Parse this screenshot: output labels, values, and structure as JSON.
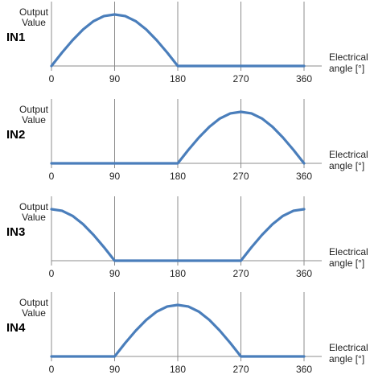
{
  "colors": {
    "series": "#4a7ebb",
    "grid": "#8c8c8c",
    "text": "#222222"
  },
  "chart_data": [
    {
      "type": "line",
      "panel_label": "IN1",
      "ylabel": "Output\nValue",
      "xlabel": "Electrical\nangle [°]",
      "x_ticks": [
        0,
        90,
        180,
        270,
        360
      ],
      "xlim": [
        0,
        360
      ],
      "ylim": [
        0,
        1
      ],
      "grid": true,
      "series": [
        {
          "x": [
            0,
            15,
            30,
            45,
            60,
            75,
            90,
            105,
            120,
            135,
            150,
            165,
            180,
            270,
            360
          ],
          "y": [
            0,
            0.26,
            0.5,
            0.71,
            0.87,
            0.97,
            1,
            0.97,
            0.87,
            0.71,
            0.5,
            0.26,
            0,
            0,
            0
          ]
        }
      ]
    },
    {
      "type": "line",
      "panel_label": "IN2",
      "ylabel": "Output\nValue",
      "xlabel": "Electrical\nangle [°]",
      "x_ticks": [
        0,
        90,
        180,
        270,
        360
      ],
      "xlim": [
        0,
        360
      ],
      "ylim": [
        0,
        1
      ],
      "grid": true,
      "series": [
        {
          "x": [
            0,
            90,
            180,
            195,
            210,
            225,
            240,
            255,
            270,
            285,
            300,
            315,
            330,
            345,
            360
          ],
          "y": [
            0,
            0,
            0,
            0.26,
            0.5,
            0.71,
            0.87,
            0.97,
            1,
            0.97,
            0.87,
            0.71,
            0.5,
            0.26,
            0
          ]
        }
      ]
    },
    {
      "type": "line",
      "panel_label": "IN3",
      "ylabel": "Output\nValue",
      "xlabel": "Electrical\nangle [°]",
      "x_ticks": [
        0,
        90,
        180,
        270,
        360
      ],
      "xlim": [
        0,
        360
      ],
      "ylim": [
        0,
        1
      ],
      "grid": true,
      "series": [
        {
          "x": [
            0,
            15,
            30,
            45,
            60,
            75,
            90,
            180,
            270,
            285,
            300,
            315,
            330,
            345,
            360
          ],
          "y": [
            1,
            0.97,
            0.87,
            0.71,
            0.5,
            0.26,
            0,
            0,
            0,
            0.26,
            0.5,
            0.71,
            0.87,
            0.97,
            1
          ]
        }
      ]
    },
    {
      "type": "line",
      "panel_label": "IN4",
      "ylabel": "Output\nValue",
      "xlabel": "Electrical\nangle [°]",
      "x_ticks": [
        0,
        90,
        180,
        270,
        360
      ],
      "xlim": [
        0,
        360
      ],
      "ylim": [
        0,
        1
      ],
      "grid": true,
      "series": [
        {
          "x": [
            0,
            90,
            105,
            120,
            135,
            150,
            165,
            180,
            195,
            210,
            225,
            240,
            255,
            270,
            360
          ],
          "y": [
            0,
            0,
            0.26,
            0.5,
            0.71,
            0.87,
            0.97,
            1,
            0.97,
            0.87,
            0.71,
            0.5,
            0.26,
            0,
            0
          ]
        }
      ]
    }
  ]
}
